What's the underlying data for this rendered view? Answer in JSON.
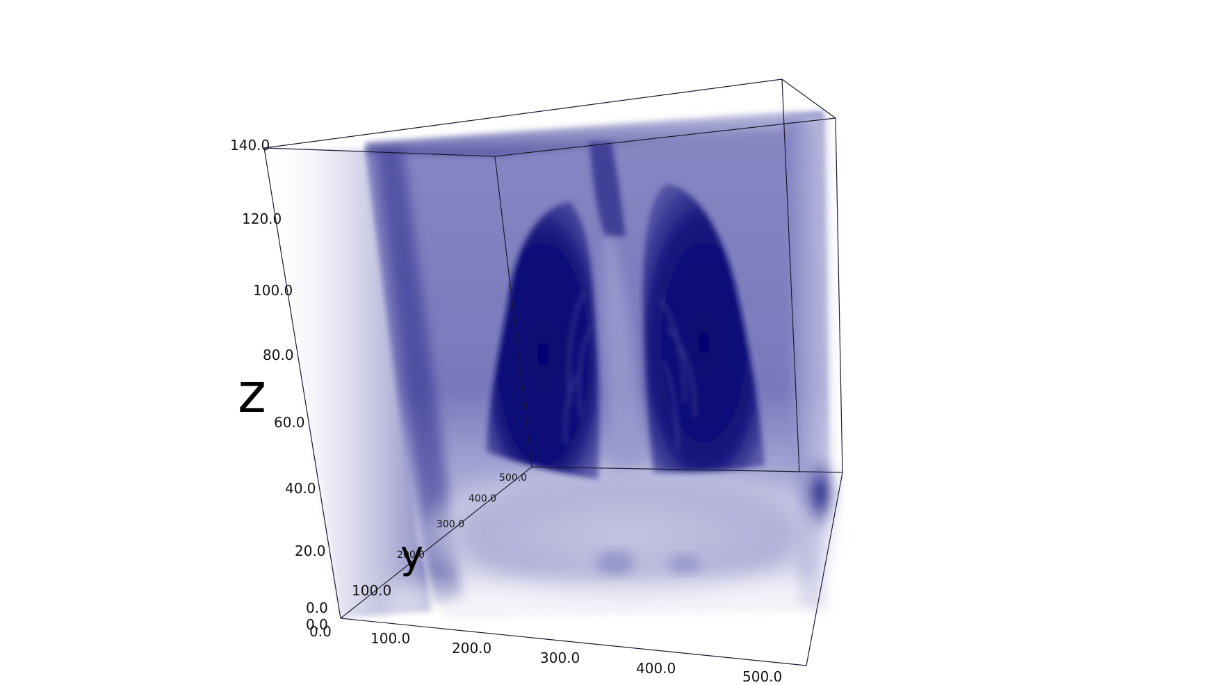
{
  "volume": {
    "tint_color": "#0b0b5e",
    "background_color": "#ffffff",
    "edge_color": "#1a1a2e"
  },
  "axes": {
    "z": {
      "label": "z",
      "ticks": [
        "140.0",
        "120.0",
        "100.0",
        "80.0",
        "60.0",
        "40.0",
        "20.0",
        "0.0"
      ]
    },
    "y": {
      "label": "y",
      "ticks": [
        "0.0",
        "100.0",
        "200.0",
        "300.0",
        "400.0",
        "500.0"
      ]
    },
    "x": {
      "label": "",
      "ticks": [
        "0.0",
        "100.0",
        "200.0",
        "300.0",
        "400.0",
        "500.0"
      ]
    }
  }
}
